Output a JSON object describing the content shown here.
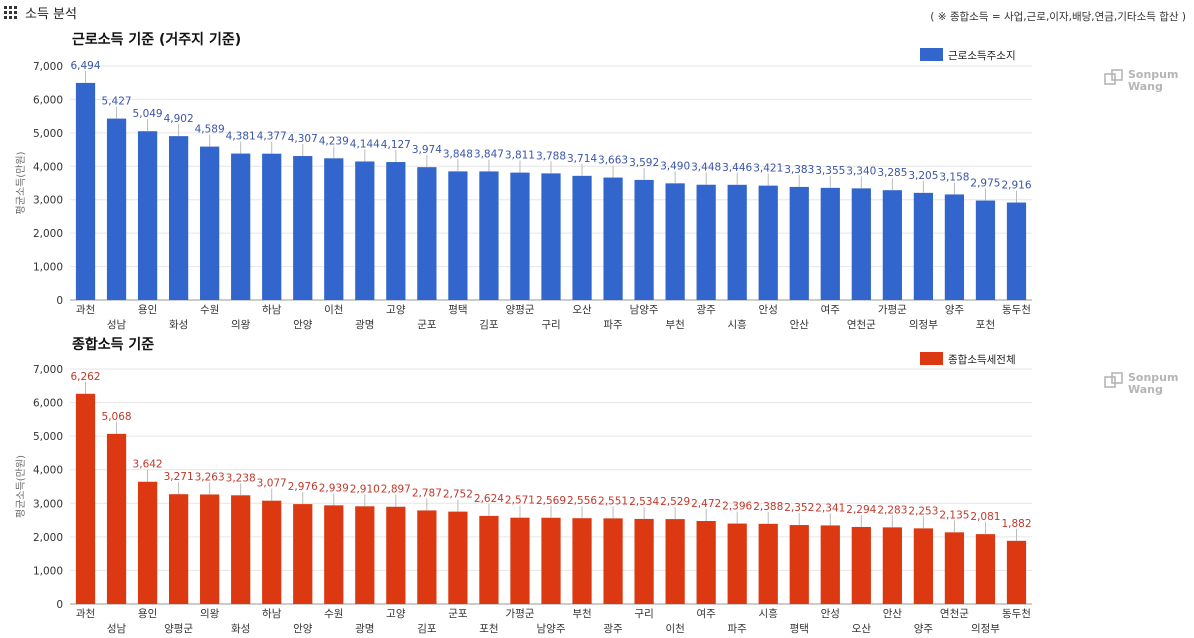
{
  "page": {
    "title": "소득 분석",
    "note": "( ※ 종합소득 = 사업,근로,이자,배당,연금,기타소득 합산 )",
    "menu_icon": "grid-icon",
    "watermark_icon": "cube-logo-icon",
    "watermark_lines": [
      "Sonpum",
      "Wang"
    ]
  },
  "chart_data": [
    {
      "type": "bar",
      "title": "근로소득 기준 (거주지 기준)",
      "ylabel": "평균소득(만원)",
      "ylim": [
        0,
        7000
      ],
      "yticks": [
        "0",
        "1,000",
        "2,000",
        "3,000",
        "4,000",
        "5,000",
        "6,000",
        "7,000"
      ],
      "ytick_values": [
        0,
        1000,
        2000,
        3000,
        4000,
        5000,
        6000,
        7000
      ],
      "grid": true,
      "legend_position": "top-right",
      "color": "#3366CC",
      "label_color": "#3a55a8",
      "categories": [
        "과천",
        "성남",
        "용인",
        "화성",
        "수원",
        "의왕",
        "하남",
        "안양",
        "이천",
        "광명",
        "고양",
        "군포",
        "평택",
        "김포",
        "양평군",
        "구리",
        "오산",
        "파주",
        "남양주",
        "부천",
        "광주",
        "시흥",
        "안성",
        "안산",
        "여주",
        "연천군",
        "가평군",
        "의정부",
        "양주",
        "포천",
        "동두천"
      ],
      "series": [
        {
          "name": "근로소득주소지",
          "values": [
            6494,
            5427,
            5049,
            4902,
            4589,
            4381,
            4377,
            4307,
            4239,
            4144,
            4127,
            3974,
            3848,
            3847,
            3811,
            3788,
            3714,
            3663,
            3592,
            3490,
            3448,
            3446,
            3421,
            3383,
            3355,
            3340,
            3285,
            3205,
            3158,
            2975,
            2916
          ],
          "labels": [
            "6,494",
            "5,427",
            "5,049",
            "4,902",
            "4,589",
            "4,381",
            "4,377",
            "4,307",
            "4,239",
            "4,144",
            "4,127",
            "3,974",
            "3,848",
            "3,847",
            "3,811",
            "3,788",
            "3,714",
            "3,663",
            "3,592",
            "3,490",
            "3,448",
            "3,446",
            "3,421",
            "3,383",
            "3,355",
            "3,340",
            "3,285",
            "3,205",
            "3,158",
            "2,975",
            "2,916"
          ]
        }
      ]
    },
    {
      "type": "bar",
      "title": "종합소득 기준",
      "ylabel": "평균소득(만원)",
      "ylim": [
        0,
        7000
      ],
      "yticks": [
        "0",
        "1,000",
        "2,000",
        "3,000",
        "4,000",
        "5,000",
        "6,000",
        "7,000"
      ],
      "ytick_values": [
        0,
        1000,
        2000,
        3000,
        4000,
        5000,
        6000,
        7000
      ],
      "grid": true,
      "legend_position": "top-right",
      "color": "#DC3912",
      "label_color": "#c0392b",
      "categories": [
        "과천",
        "성남",
        "용인",
        "양평군",
        "의왕",
        "화성",
        "하남",
        "안양",
        "수원",
        "광명",
        "고양",
        "김포",
        "군포",
        "포천",
        "가평군",
        "남양주",
        "부천",
        "광주",
        "구리",
        "이천",
        "여주",
        "파주",
        "시흥",
        "평택",
        "안성",
        "오산",
        "안산",
        "양주",
        "연천군",
        "의정부",
        "동두천"
      ],
      "series": [
        {
          "name": "종합소득세전체",
          "values": [
            6262,
            5068,
            3642,
            3271,
            3263,
            3238,
            3077,
            2976,
            2939,
            2910,
            2897,
            2787,
            2752,
            2624,
            2571,
            2569,
            2556,
            2551,
            2534,
            2529,
            2472,
            2396,
            2388,
            2352,
            2341,
            2294,
            2283,
            2253,
            2135,
            2081,
            1882
          ],
          "labels": [
            "6,262",
            "5,068",
            "3,642",
            "3,271",
            "3,263",
            "3,238",
            "3,077",
            "2,976",
            "2,939",
            "2,910",
            "2,897",
            "2,787",
            "2,752",
            "2,624",
            "2,571",
            "2,569",
            "2,556",
            "2,551",
            "2,534",
            "2,529",
            "2,472",
            "2,396",
            "2,388",
            "2,352",
            "2,341",
            "2,294",
            "2,283",
            "2,253",
            "2,135",
            "2,081",
            "1,882"
          ]
        }
      ]
    }
  ]
}
